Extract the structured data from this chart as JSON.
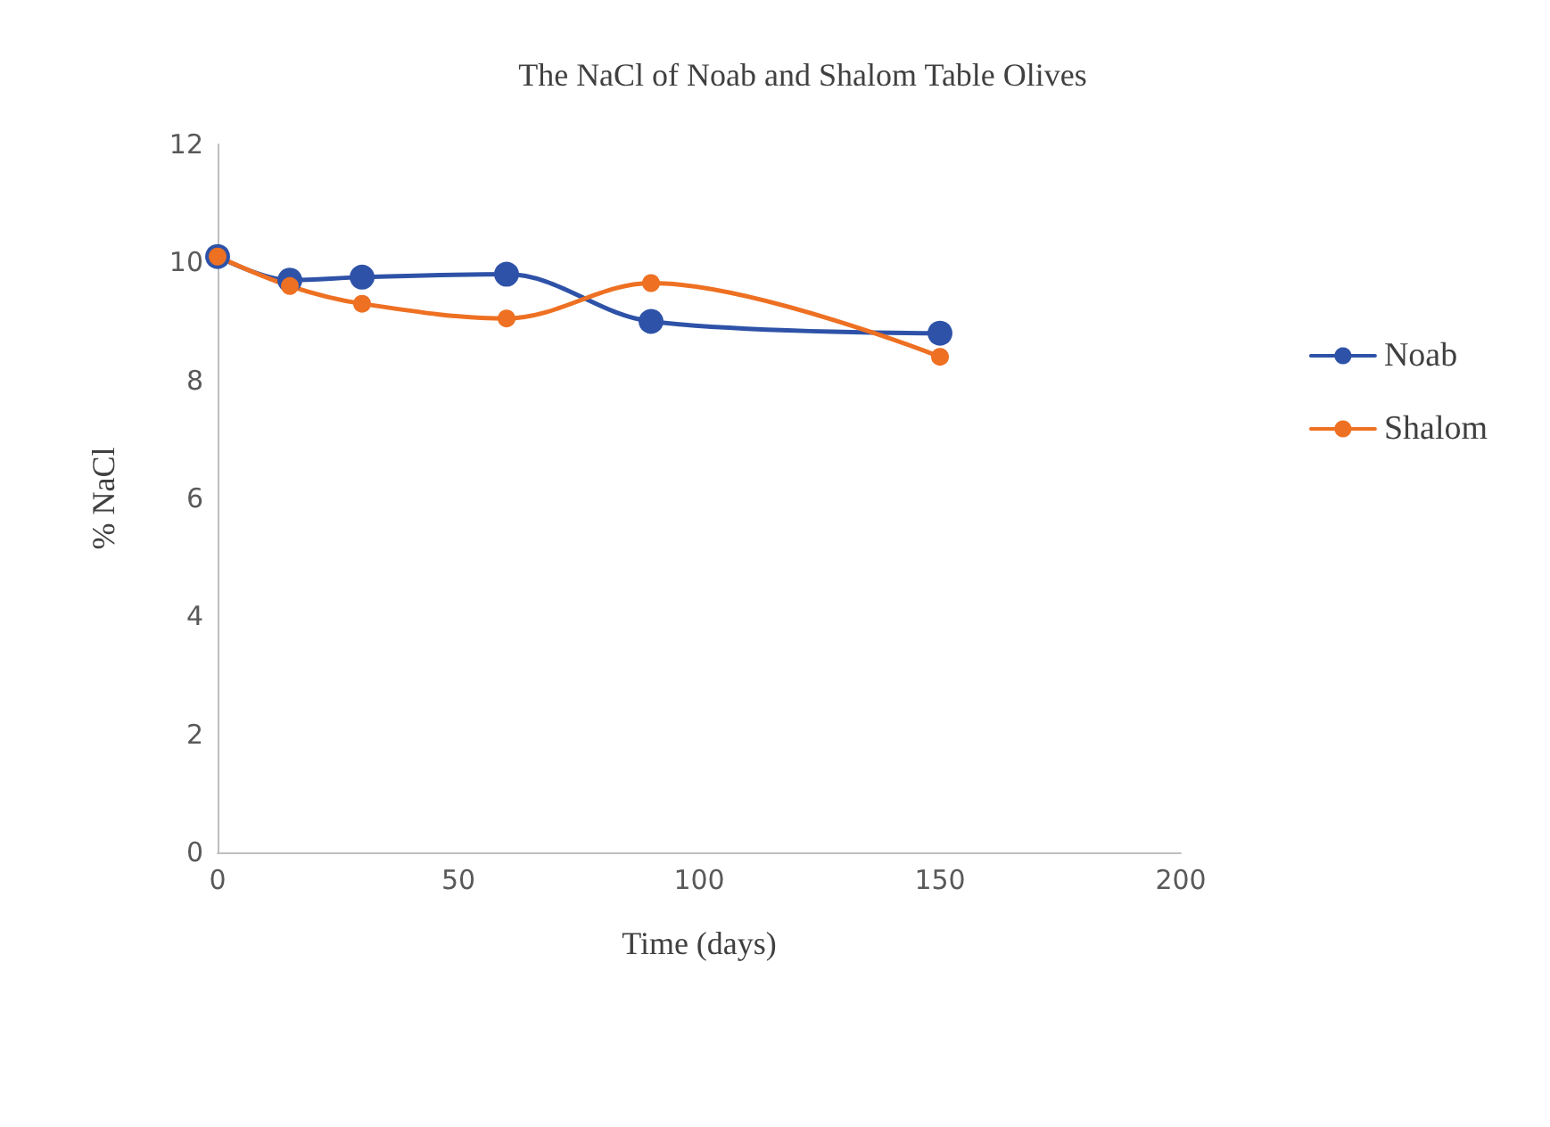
{
  "chart_data": {
    "type": "line",
    "title": "The NaCl of Noab and Shalom Table Olives",
    "xlabel": "Time (days)",
    "ylabel": "% NaCl",
    "x": [
      0,
      15,
      30,
      60,
      90,
      150
    ],
    "series": [
      {
        "name": "Noab",
        "color": "#2e52a8",
        "values": [
          10.1,
          9.7,
          9.75,
          9.8,
          9.0,
          8.8
        ]
      },
      {
        "name": "Shalom",
        "color": "#ee7022",
        "values": [
          10.1,
          9.6,
          9.3,
          9.05,
          9.65,
          8.4
        ]
      }
    ],
    "xlim": [
      0,
      200
    ],
    "xticks": [
      0,
      50,
      100,
      150,
      200
    ],
    "ylim": [
      0,
      12
    ],
    "yticks": [
      0,
      2,
      4,
      6,
      8,
      10,
      12
    ],
    "grid": false,
    "legend": "right",
    "marker": "circle",
    "line_style": "solid"
  }
}
